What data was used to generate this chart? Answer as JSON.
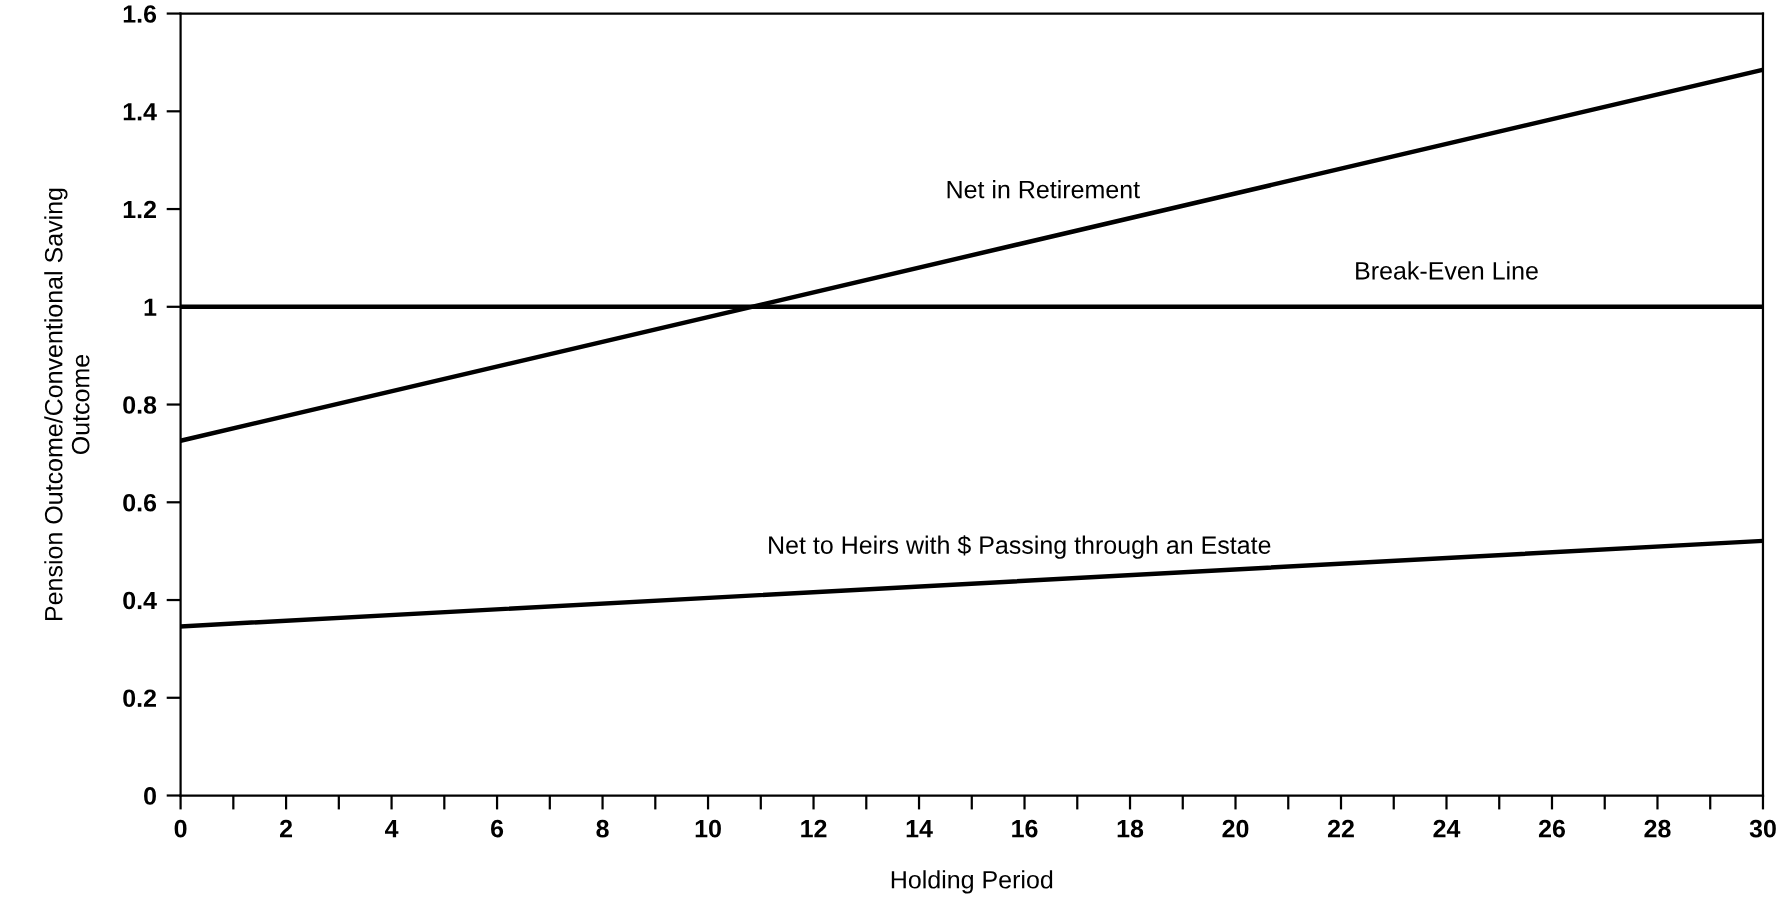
{
  "chart_data": {
    "type": "line",
    "xlabel": "Holding Period",
    "ylabel": "Pension Outcome/Conventional Saving\nOutcome",
    "x": [
      0,
      30
    ],
    "series": [
      {
        "name": "Net in Retirement",
        "color": "#000000",
        "values": [
          0.726,
          1.485
        ]
      },
      {
        "name": "Break-Even Line",
        "color": "#000000",
        "values": [
          1,
          1
        ]
      },
      {
        "name": "Net to Heirs with $ Passing through an Estate",
        "color": "#000000",
        "values": [
          0.346,
          0.521
        ]
      }
    ],
    "xlim": [
      0,
      30
    ],
    "ylim": [
      0,
      1.6
    ],
    "xticks": [
      0,
      {
        "value": 1,
        "label": null
      },
      2,
      {
        "value": 3,
        "label": null
      },
      4,
      {
        "value": 5,
        "label": null
      },
      6,
      {
        "value": 7,
        "label": null
      },
      8,
      {
        "value": 9,
        "label": null
      },
      10,
      {
        "value": 11,
        "label": null
      },
      12,
      {
        "value": 13,
        "label": null
      },
      14,
      {
        "value": 15,
        "label": null
      },
      16,
      {
        "value": 17,
        "label": null
      },
      18,
      {
        "value": 19,
        "label": null
      },
      20,
      {
        "value": 21,
        "label": null
      },
      22,
      {
        "value": 23,
        "label": null
      },
      24,
      {
        "value": 25,
        "label": null
      },
      26,
      {
        "value": 27,
        "label": null
      },
      28,
      {
        "value": 29,
        "label": null
      },
      30
    ],
    "yticks": [
      0,
      0.2,
      0.4,
      0.6,
      0.8,
      1,
      1.2,
      1.4,
      1.6
    ],
    "grid": false,
    "legend": false,
    "marker": "none",
    "line_style": "solid"
  }
}
